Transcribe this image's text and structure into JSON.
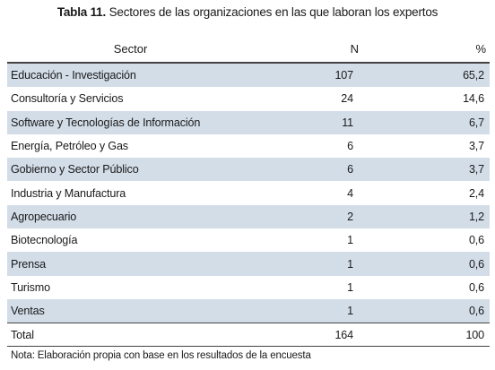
{
  "caption": {
    "label": "Tabla 11.",
    "text": " Sectores de las organizaciones en las que laboran los expertos"
  },
  "table": {
    "headers": {
      "sector": "Sector",
      "n": "N",
      "pct": "%"
    },
    "rows": [
      {
        "sector": "Educación - Investigación",
        "n": "107",
        "pct": "65,2"
      },
      {
        "sector": "Consultoría y Servicios",
        "n": "24",
        "pct": "14,6"
      },
      {
        "sector": "Software y Tecnologías de Información",
        "n": "11",
        "pct": "6,7"
      },
      {
        "sector": "Energía, Petróleo y Gas",
        "n": "6",
        "pct": "3,7"
      },
      {
        "sector": "Gobierno y Sector Público",
        "n": "6",
        "pct": "3,7"
      },
      {
        "sector": "Industria y Manufactura",
        "n": "4",
        "pct": "2,4"
      },
      {
        "sector": "Agropecuario",
        "n": "2",
        "pct": "1,2"
      },
      {
        "sector": "Biotecnología",
        "n": "1",
        "pct": "0,6"
      },
      {
        "sector": "Prensa",
        "n": "1",
        "pct": "0,6"
      },
      {
        "sector": "Turismo",
        "n": "1",
        "pct": "0,6"
      },
      {
        "sector": "Ventas",
        "n": "1",
        "pct": "0,6"
      }
    ],
    "total": {
      "sector": "Total",
      "n": "164",
      "pct": "100"
    },
    "shade_color": "#d3dde8"
  },
  "note": "Nota: Elaboración propia con base en los resultados de la encuesta"
}
